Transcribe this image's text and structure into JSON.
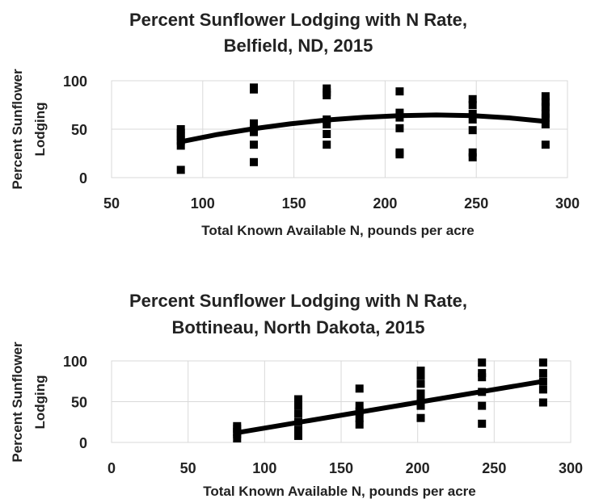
{
  "chart_data": [
    {
      "type": "scatter",
      "title_lines": [
        "Percent Sunflower Lodging with N Rate,",
        "Belfield, ND, 2015"
      ],
      "xlabel": "Total Known Available N, pounds per acre",
      "ylabel_lines": [
        "Percent Sunflower",
        "Lodging"
      ],
      "xlim": [
        50,
        300
      ],
      "ylim": [
        0,
        100
      ],
      "x_ticks": [
        50,
        100,
        150,
        200,
        250,
        300
      ],
      "y_ticks": [
        0,
        50,
        100
      ],
      "grid": true,
      "series": [
        {
          "type": "scatter",
          "x": [
            88,
            88,
            88,
            88,
            88,
            88,
            128,
            128,
            128,
            128,
            128,
            128,
            128,
            168,
            168,
            168,
            168,
            168,
            168,
            168,
            208,
            208,
            208,
            208,
            208,
            208,
            248,
            248,
            248,
            248,
            248,
            248,
            248,
            288,
            288,
            288,
            288,
            288,
            288,
            288
          ],
          "y": [
            8,
            33,
            38,
            42,
            46,
            50,
            16,
            34,
            47,
            52,
            56,
            91,
            93,
            34,
            45,
            55,
            60,
            85,
            88,
            92,
            24,
            26,
            51,
            62,
            67,
            89,
            21,
            26,
            49,
            60,
            66,
            75,
            81,
            34,
            55,
            62,
            66,
            73,
            78,
            84
          ]
        },
        {
          "type": "line",
          "x": [
            88,
            108,
            128,
            148,
            168,
            188,
            208,
            228,
            248,
            268,
            288
          ],
          "y": [
            37,
            44.5,
            50.5,
            55.5,
            59.5,
            62.2,
            64,
            64.7,
            64,
            61.7,
            58
          ]
        }
      ]
    },
    {
      "type": "scatter",
      "title_lines": [
        "Percent Sunflower Lodging with N Rate,",
        "Bottineau, North Dakota, 2015"
      ],
      "xlabel": "Total Known Available N, pounds per acre",
      "ylabel_lines": [
        "Percent Sunflower",
        "Lodging"
      ],
      "xlim": [
        0,
        300
      ],
      "ylim": [
        0,
        100
      ],
      "x_ticks": [
        0,
        50,
        100,
        150,
        200,
        250,
        300
      ],
      "y_ticks": [
        0,
        50,
        100
      ],
      "grid": true,
      "series": [
        {
          "type": "scatter",
          "x": [
            82,
            82,
            82,
            82,
            82,
            122,
            122,
            122,
            122,
            122,
            122,
            162,
            162,
            162,
            162,
            162,
            202,
            202,
            202,
            202,
            202,
            202,
            202,
            242,
            242,
            242,
            242,
            242,
            242,
            282,
            282,
            282,
            282,
            282
          ],
          "y": [
            5,
            10,
            13,
            17,
            20,
            8,
            15,
            25,
            35,
            45,
            53,
            22,
            30,
            38,
            45,
            66,
            30,
            45,
            53,
            60,
            72,
            82,
            88,
            23,
            45,
            62,
            80,
            85,
            98,
            49,
            65,
            75,
            85,
            98
          ]
        },
        {
          "type": "line",
          "x": [
            82,
            282
          ],
          "y": [
            12,
            75
          ]
        }
      ]
    }
  ]
}
